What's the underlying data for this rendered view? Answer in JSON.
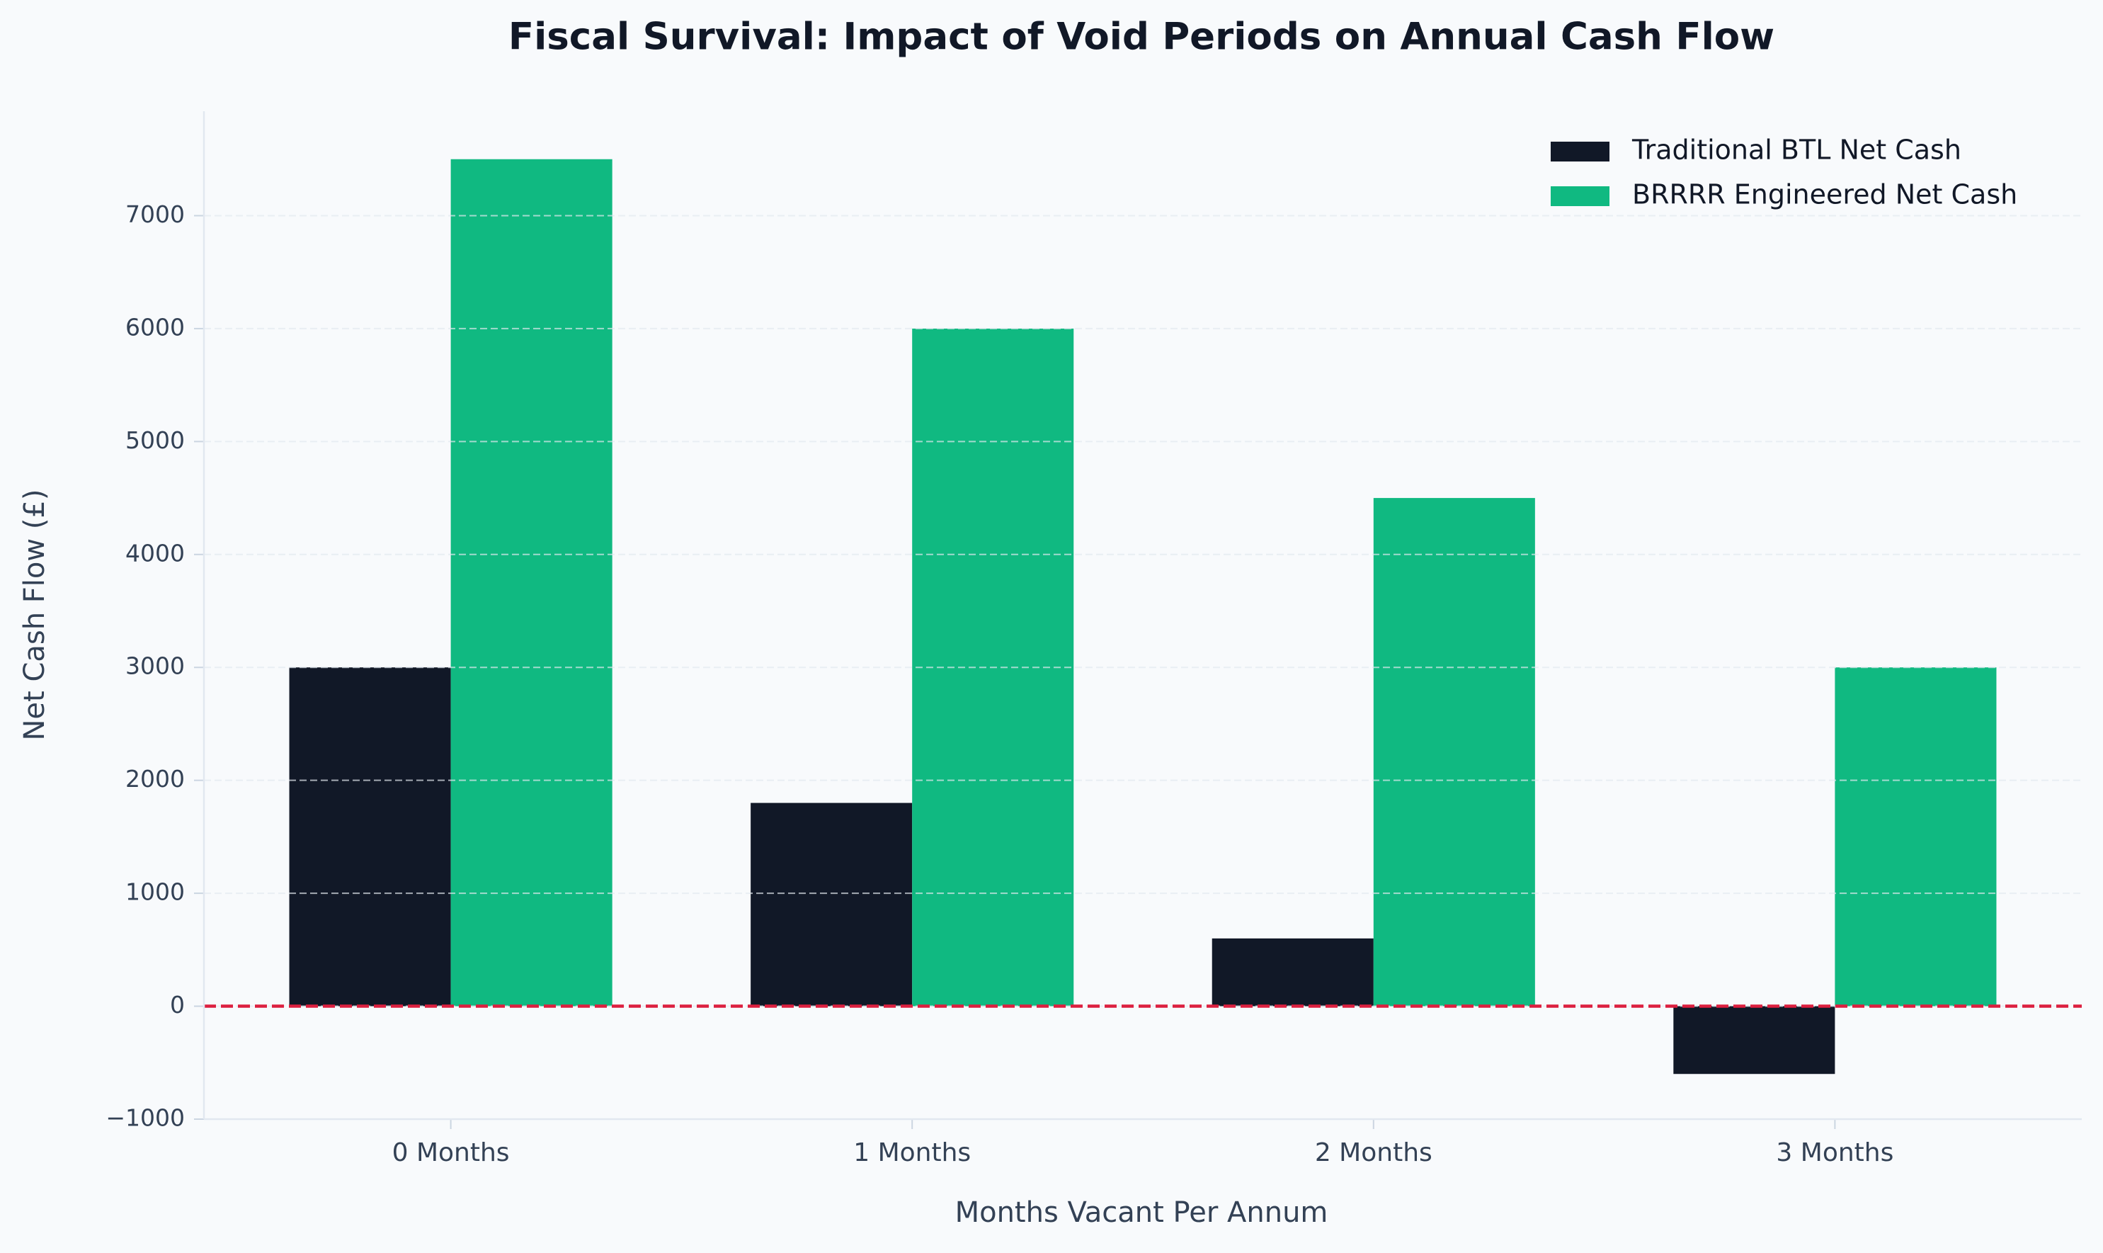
{
  "chart_data": {
    "type": "bar",
    "title": "Fiscal Survival: Impact of Void Periods on Annual Cash Flow",
    "x_label": "Months Vacant Per Annum",
    "y_label": "Net Cash Flow (£)",
    "categories": [
      "0 Months",
      "1 Months",
      "2 Months",
      "3 Months"
    ],
    "series": [
      {
        "name": "Traditional BTL Net Cash",
        "color": "#111827",
        "values": [
          3000,
          1800,
          600,
          -600
        ]
      },
      {
        "name": "BRRRR Engineered Net Cash",
        "color": "#10b981",
        "values": [
          7500,
          6000,
          4500,
          3000
        ]
      }
    ],
    "ylim": [
      -1000,
      7925
    ],
    "yticks": [
      {
        "value": -1000,
        "label": "−1000"
      },
      0,
      1000,
      2000,
      3000,
      4000,
      5000,
      6000,
      7000
    ],
    "grid": true,
    "reference_line": {
      "value": 0,
      "color": "#dc1f3f"
    },
    "legend": "upper right"
  }
}
